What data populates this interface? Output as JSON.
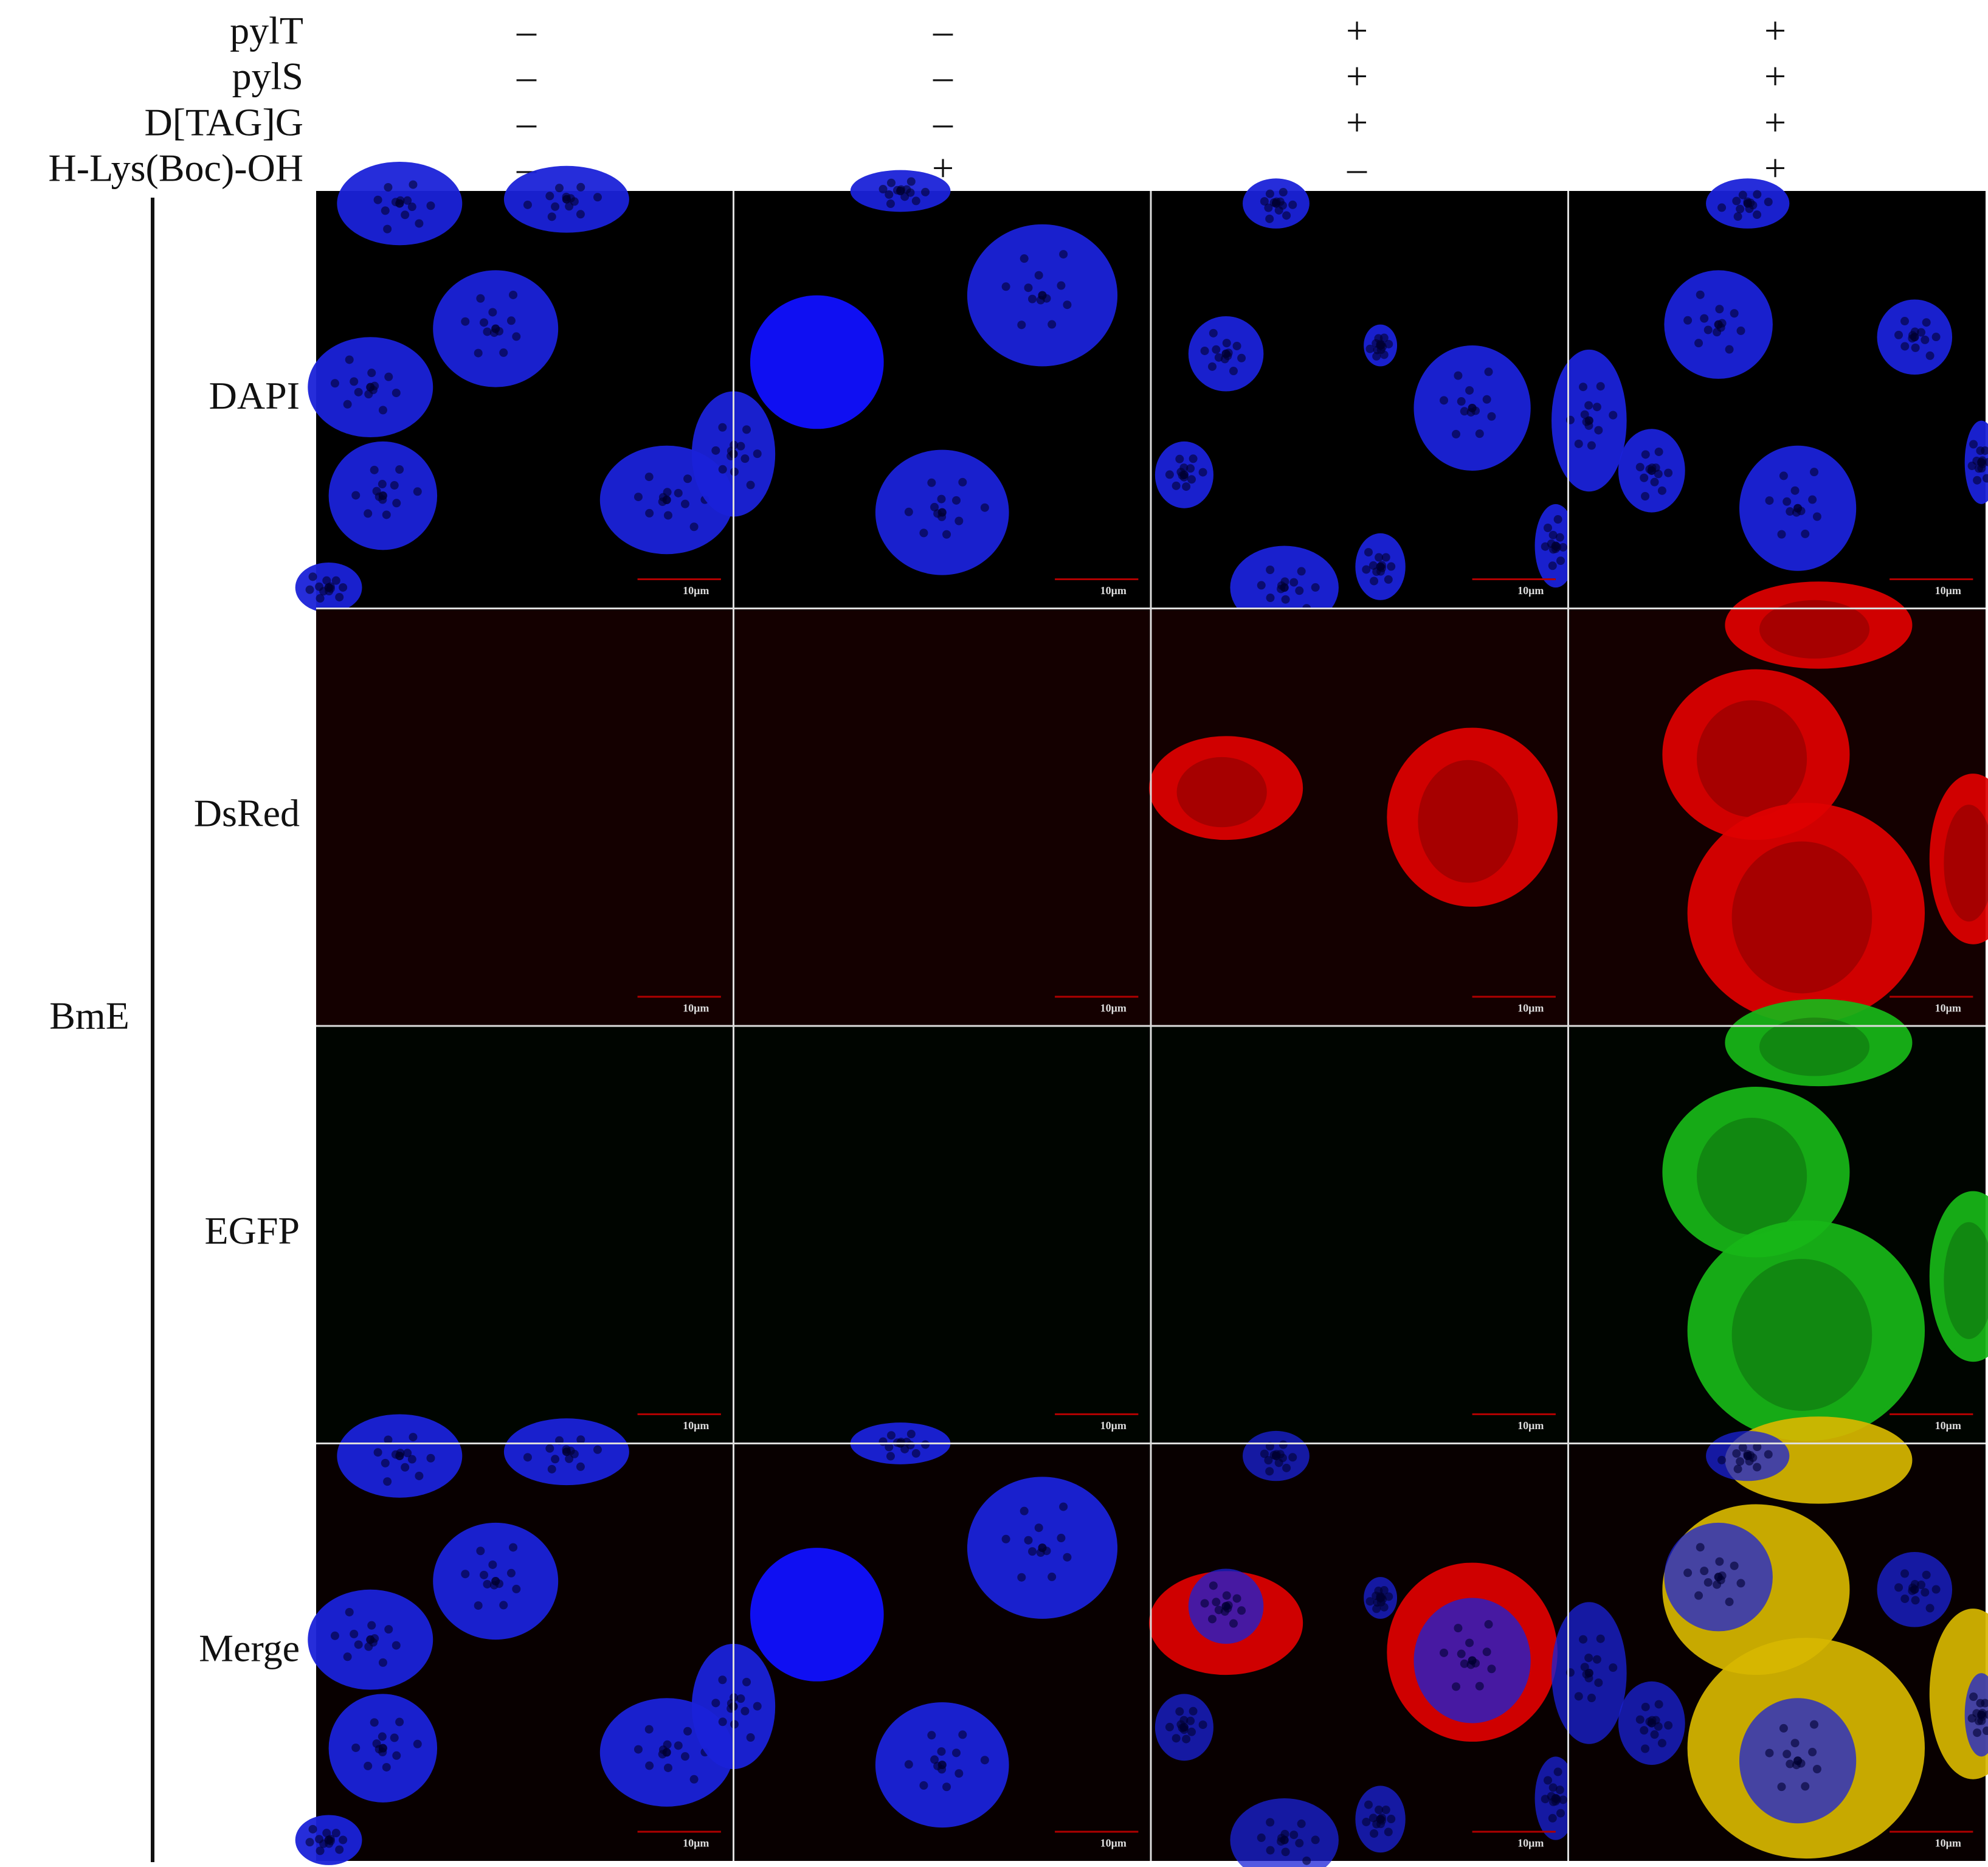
{
  "conditions": [
    {
      "label": "pylT",
      "values": [
        "–",
        "–",
        "+",
        "+"
      ]
    },
    {
      "label": "pylS",
      "values": [
        "–",
        "–",
        "+",
        "+"
      ]
    },
    {
      "label": "D[TAG]G",
      "values": [
        "–",
        "–",
        "+",
        "+"
      ]
    },
    {
      "label": "H-Lys(Boc)-OH",
      "values": [
        "–",
        "+",
        "–",
        "+"
      ]
    }
  ],
  "group_label": "BmE",
  "rows": [
    {
      "label": "DAPI",
      "scale_bars": [
        "10μm",
        "10μm",
        "10μm",
        "10μm"
      ]
    },
    {
      "label": "DsRed",
      "scale_bars": [
        "10μm",
        "10μm",
        "10μm",
        "10μm"
      ]
    },
    {
      "label": "EGFP",
      "scale_bars": [
        "10μm",
        "10μm",
        "10μm",
        "10μm"
      ]
    },
    {
      "label": "Merge",
      "scale_bars": [
        "10μm",
        "10μm",
        "10μm",
        "10μm"
      ]
    }
  ]
}
